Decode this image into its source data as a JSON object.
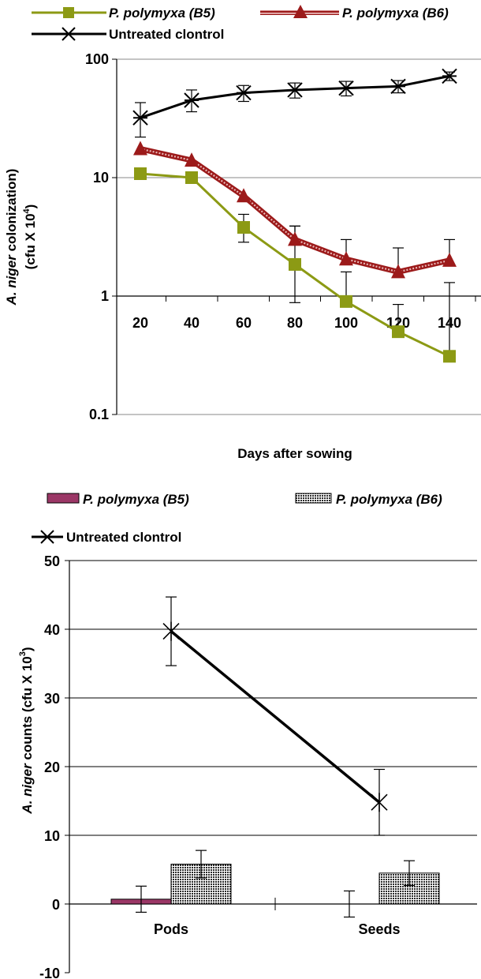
{
  "chart_data": [
    {
      "type": "line",
      "yscale": "log",
      "x": [
        20,
        40,
        60,
        80,
        100,
        120,
        140
      ],
      "xlabel": "Days after sowing",
      "ylabel_italic": "A. niger",
      "ylabel_rest": " colonization)",
      "ylabel_line2_pre": "(cfu X 10",
      "ylabel_line2_sup": "4",
      "ylabel_line2_post": ")",
      "ylim": [
        0.1,
        100
      ],
      "yticks": [
        {
          "value": 0.1,
          "label": "0.1"
        },
        {
          "value": 1,
          "label": "1"
        },
        {
          "value": 10,
          "label": "10"
        },
        {
          "value": 100,
          "label": "100"
        }
      ],
      "xticklabels": [
        "20",
        "40",
        "60",
        "80",
        "100",
        "120",
        "140"
      ],
      "legend_position": "top",
      "series": [
        {
          "name": "P. polymyxa (B5)",
          "color": "#8c9a14",
          "marker": "square",
          "values": [
            10.8,
            10.0,
            3.8,
            1.85,
            0.9,
            0.5,
            0.31
          ],
          "err_up": [
            11.2,
            10.4,
            4.9,
            3.9,
            1.6,
            0.85,
            1.3
          ],
          "err_dn": [
            null,
            null,
            2.85,
            0.88,
            null,
            null,
            null
          ]
        },
        {
          "name": "P. polymyxa (B6)",
          "color": "#9c1a1a",
          "marker": "triangle",
          "values": [
            17.5,
            14.0,
            7.0,
            3.0,
            2.05,
            1.6,
            2.0
          ],
          "err_up": [
            null,
            null,
            null,
            3.9,
            3.0,
            2.55,
            3.0
          ],
          "err_dn": [
            null,
            null,
            null,
            null,
            null,
            null,
            null
          ]
        },
        {
          "name": "Untreated clontrol",
          "color": "#000000",
          "marker": "star",
          "values": [
            32,
            45,
            52,
            55,
            57,
            59,
            72
          ],
          "err_up": [
            43,
            55,
            60,
            63,
            65,
            66,
            78
          ],
          "err_dn": [
            22,
            36,
            44,
            47,
            49,
            52,
            66
          ]
        }
      ]
    },
    {
      "type": "bar",
      "categories": [
        "Pods",
        "Seeds"
      ],
      "ylabel_italic": "A. niger",
      "ylabel_rest": " counts (cfu X 10",
      "ylabel_sup": "3",
      "ylabel_end": ")",
      "ylim": [
        -10,
        50
      ],
      "yticks": [
        {
          "value": -10,
          "label": "-10"
        },
        {
          "value": 0,
          "label": "0"
        },
        {
          "value": 10,
          "label": "10"
        },
        {
          "value": 20,
          "label": "20"
        },
        {
          "value": 30,
          "label": "30"
        },
        {
          "value": 40,
          "label": "40"
        },
        {
          "value": 50,
          "label": "50"
        }
      ],
      "legend_position": "top",
      "series": [
        {
          "name": "P. polymyxa (B5)",
          "kind": "bar",
          "color": "#9b3766",
          "values": [
            0.7,
            0.0
          ],
          "err": [
            1.9,
            1.9
          ]
        },
        {
          "name": "P. polymyxa (B6)",
          "kind": "bar",
          "color": "#7a7a7a",
          "pattern": "dotted",
          "values": [
            5.8,
            4.5
          ],
          "err": [
            2.0,
            1.8
          ]
        },
        {
          "name": "Untreated clontrol",
          "kind": "line",
          "color": "#000000",
          "marker": "star",
          "values": [
            39.7,
            14.8
          ],
          "err": [
            5.0,
            4.8
          ]
        }
      ]
    }
  ]
}
